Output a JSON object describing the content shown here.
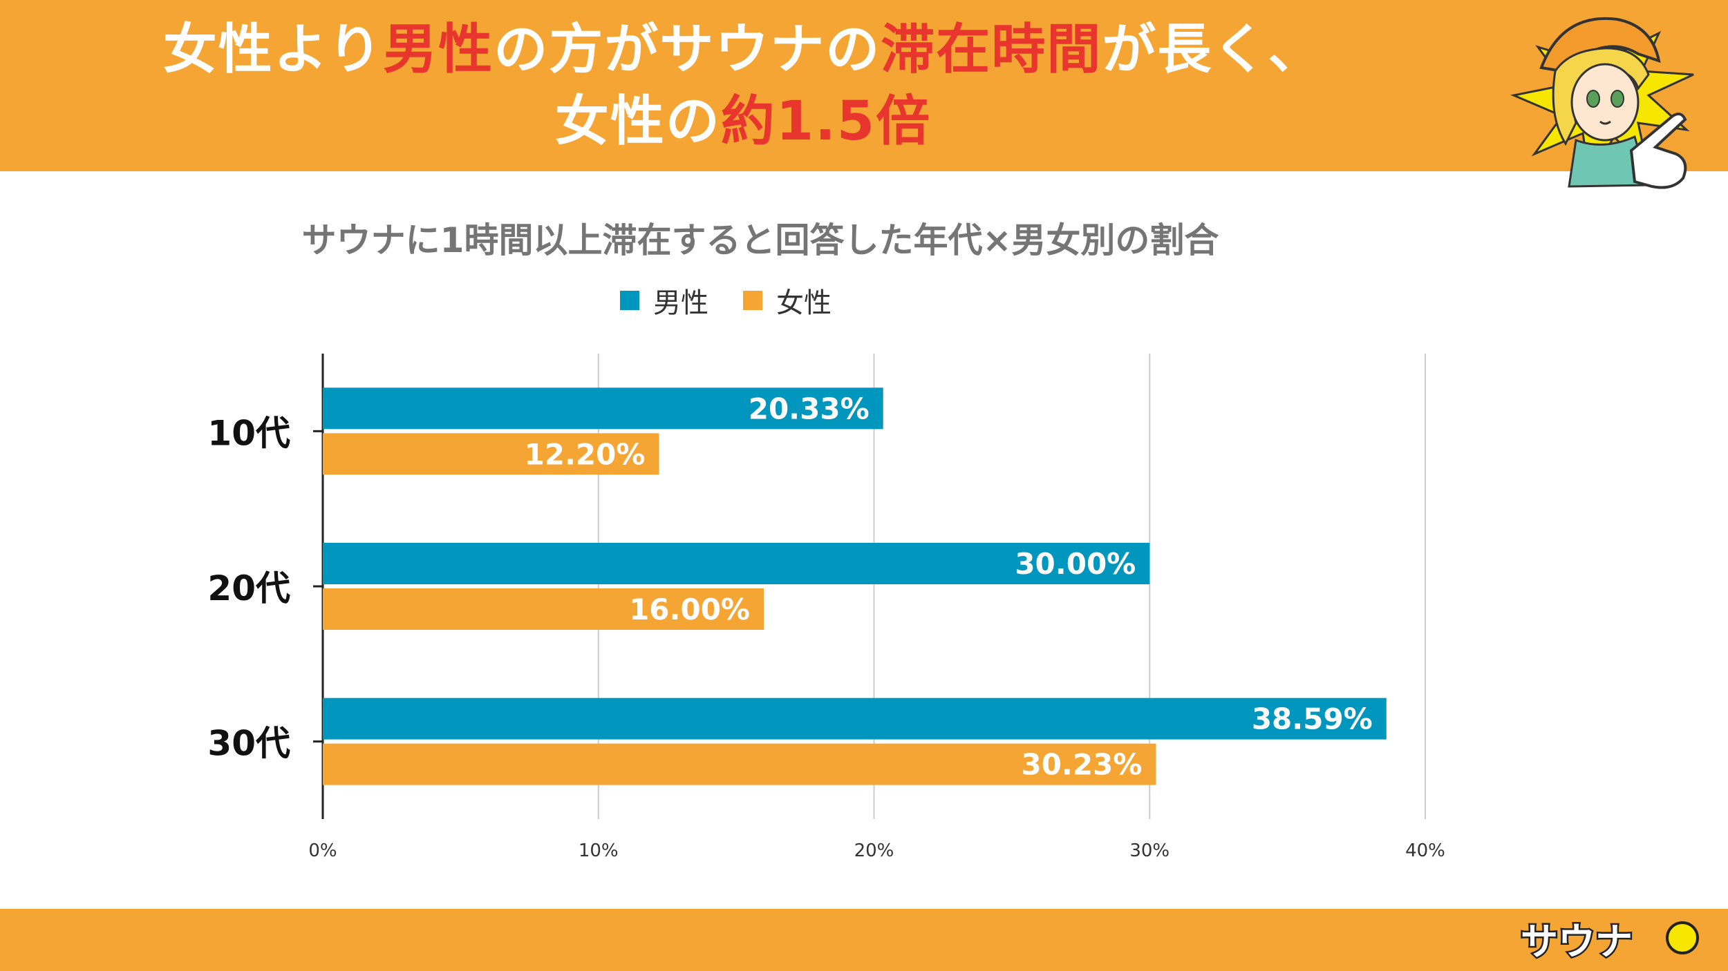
{
  "header": {
    "line1": [
      {
        "text": "女性より",
        "highlight": false
      },
      {
        "text": "男性",
        "highlight": true
      },
      {
        "text": "の方がサウナの",
        "highlight": false
      },
      {
        "text": "滞在時間",
        "highlight": true
      },
      {
        "text": "が長く、",
        "highlight": false
      }
    ],
    "line2": [
      {
        "text": "女性の",
        "highlight": false
      },
      {
        "text": "約1.5倍",
        "highlight": true
      }
    ]
  },
  "colors": {
    "header_bg": "#f4a533",
    "highlight": "#e8362f",
    "male": "#0096be",
    "female": "#f4a533",
    "grid": "#cccccc",
    "axis": "#222222"
  },
  "logo": {
    "text": "サウナ",
    "icon": "sauna-mascot-logo"
  },
  "chart_data": {
    "type": "bar",
    "orientation": "horizontal",
    "title": "サウナに1時間以上滞在すると回答した年代×男女別の割合",
    "categories": [
      "10代",
      "20代",
      "30代"
    ],
    "series": [
      {
        "name": "男性",
        "values": [
          20.33,
          30.0,
          38.59
        ],
        "labels": [
          "20.33%",
          "30.00%",
          "38.59%"
        ]
      },
      {
        "name": "女性",
        "values": [
          12.2,
          16.0,
          30.23
        ],
        "labels": [
          "12.20%",
          "16.00%",
          "30.23%"
        ]
      }
    ],
    "xlim": [
      0,
      40
    ],
    "xticks": [
      "0%",
      "10%",
      "20%",
      "30%",
      "40%"
    ],
    "legend": "top-center",
    "grid": true
  }
}
